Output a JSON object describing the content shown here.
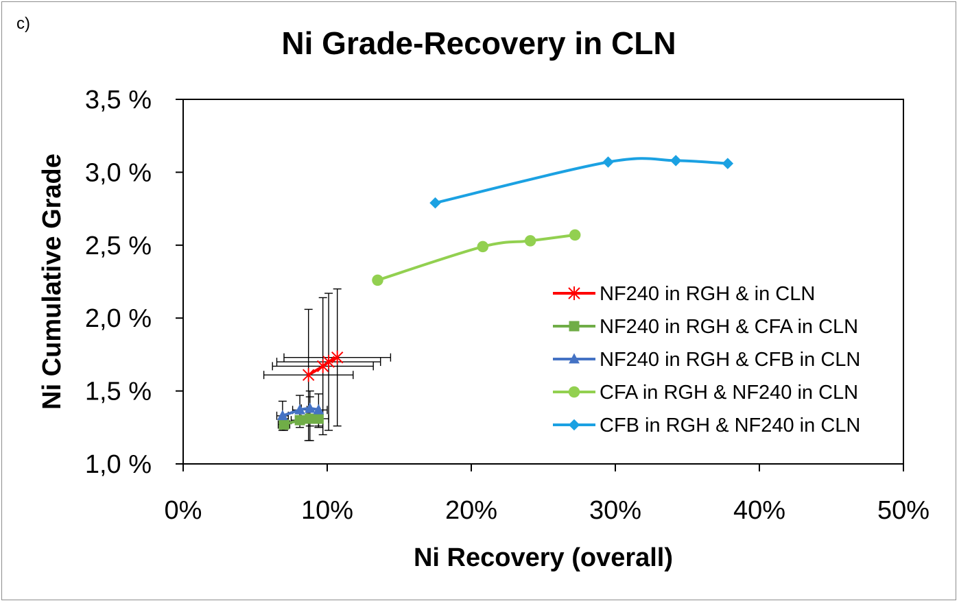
{
  "panel_label": "c)",
  "chart_data": {
    "type": "scatter",
    "title": "Ni Grade-Recovery in CLN",
    "xlabel": "Ni Recovery (overall)",
    "ylabel": "Ni Cumulative Grade",
    "xlim": [
      0,
      50
    ],
    "ylim": [
      1.0,
      3.5
    ],
    "x_ticks": [
      0,
      10,
      20,
      30,
      40,
      50
    ],
    "x_tick_labels": [
      "0%",
      "10%",
      "20%",
      "30%",
      "40%",
      "50%"
    ],
    "y_ticks": [
      1.0,
      1.5,
      2.0,
      2.5,
      3.0,
      3.5
    ],
    "y_tick_labels": [
      "1,0 %",
      "1,5 %",
      "2,0 %",
      "2,5 %",
      "3,0 %",
      "3,5 %"
    ],
    "grid": false,
    "legend_position": "right",
    "series": [
      {
        "name": "NF240 in RGH & in CLN",
        "color": "#ff0000",
        "marker": "asterisk",
        "x": [
          8.7,
          9.7,
          10.1,
          10.7
        ],
        "y": [
          1.61,
          1.67,
          1.7,
          1.73
        ],
        "xerr": [
          3.1,
          3.5,
          3.6,
          3.7
        ],
        "yerr": [
          0.45,
          0.47,
          0.47,
          0.47
        ]
      },
      {
        "name": "NF240 in RGH & CFA in CLN",
        "color": "#70ad47",
        "marker": "square",
        "x": [
          7.0,
          8.1,
          8.8,
          9.4
        ],
        "y": [
          1.27,
          1.3,
          1.31,
          1.31
        ],
        "xerr": [
          0.4,
          0.6,
          0.6,
          0.7
        ],
        "yerr": [
          0.04,
          0.05,
          0.15,
          0.06
        ]
      },
      {
        "name": "NF240 in RGH & CFB in CLN",
        "color": "#4472c4",
        "marker": "triangle",
        "x": [
          6.9,
          8.1,
          8.8,
          9.4
        ],
        "y": [
          1.33,
          1.37,
          1.38,
          1.37
        ],
        "xerr": [
          0.4,
          0.5,
          0.6,
          0.6
        ],
        "yerr": [
          0.1,
          0.1,
          0.12,
          0.11
        ]
      },
      {
        "name": "CFA in RGH & NF240 in CLN",
        "color": "#92d050",
        "marker": "circle",
        "x": [
          13.5,
          20.8,
          24.1,
          27.2
        ],
        "y": [
          2.26,
          2.49,
          2.53,
          2.57
        ]
      },
      {
        "name": "CFB in RGH & NF240 in CLN",
        "color": "#1ba1e2",
        "marker": "diamond",
        "x": [
          17.5,
          29.5,
          34.2,
          37.8
        ],
        "y": [
          2.79,
          3.07,
          3.08,
          3.06
        ]
      }
    ]
  }
}
